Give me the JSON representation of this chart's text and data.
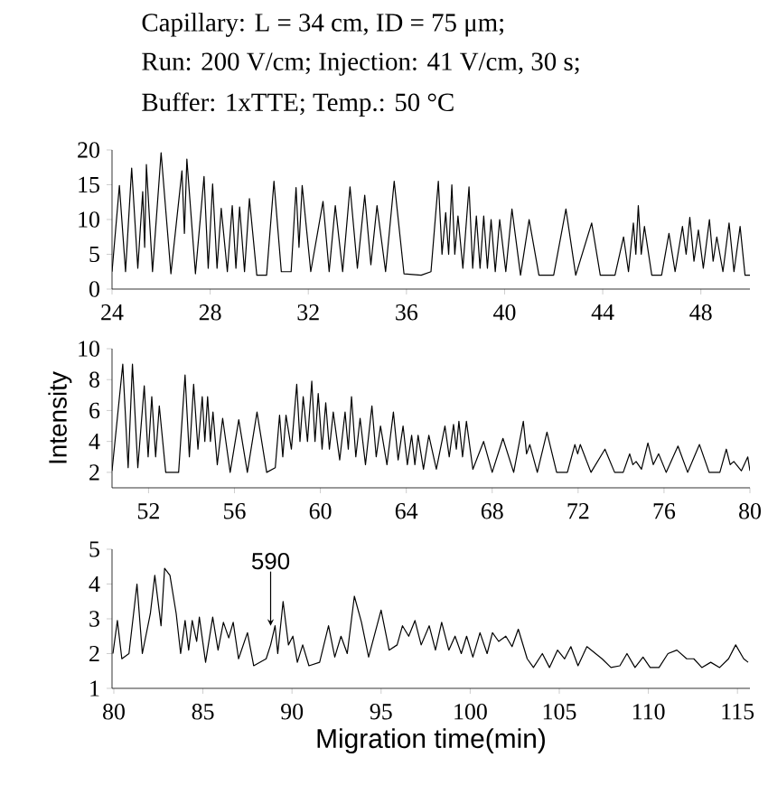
{
  "chart_data": [
    {
      "type": "line",
      "color": "#000000",
      "annotations": [
        "Capillary: L = 34 cm, ID = 75 μm;",
        "Run: 200 V/cm; Injection: 41 V/cm, 30 s;",
        "Buffer: 1xTTE; Temp.: 50 °C"
      ],
      "xlim": [
        24,
        50
      ],
      "xticks": [
        24,
        28,
        32,
        36,
        40,
        44,
        48
      ],
      "ylim": [
        0,
        20
      ],
      "yticks": [
        0,
        5,
        10,
        15,
        20
      ],
      "x": [
        24.0,
        24.3,
        24.55,
        24.8,
        25.05,
        25.25,
        25.33,
        25.4,
        25.65,
        26.0,
        26.4,
        26.85,
        26.95,
        27.05,
        27.4,
        27.75,
        27.92,
        28.1,
        28.28,
        28.45,
        28.7,
        28.9,
        29.05,
        29.2,
        29.4,
        29.6,
        29.9,
        30.3,
        30.6,
        30.9,
        31.3,
        31.5,
        31.62,
        31.75,
        32.1,
        32.6,
        32.85,
        33.1,
        33.4,
        33.7,
        34.0,
        34.3,
        34.55,
        34.8,
        35.15,
        35.5,
        35.9,
        36.6,
        37.0,
        37.3,
        37.45,
        37.6,
        37.72,
        37.85,
        37.97,
        38.1,
        38.3,
        38.55,
        38.7,
        38.85,
        39.0,
        39.15,
        39.3,
        39.45,
        39.62,
        39.8,
        40.05,
        40.3,
        40.65,
        41.0,
        41.4,
        42.0,
        42.5,
        42.9,
        43.55,
        43.9,
        44.5,
        44.85,
        45.05,
        45.25,
        45.35,
        45.45,
        45.57,
        45.7,
        46.0,
        46.4,
        46.7,
        46.95,
        47.25,
        47.4,
        47.55,
        47.72,
        47.9,
        48.1,
        48.35,
        48.5,
        48.65,
        48.9,
        49.15,
        49.35,
        49.6,
        49.8,
        50.0
      ],
      "values": [
        2.5,
        14.9,
        2.5,
        17.4,
        3,
        14,
        6,
        17.9,
        2.5,
        19.6,
        2.2,
        17,
        8,
        18.7,
        2.2,
        16.2,
        3,
        15.1,
        3,
        11.6,
        2.5,
        12,
        3,
        11.8,
        2.5,
        13,
        2,
        2,
        15.5,
        2.5,
        2.5,
        14.6,
        6,
        14.9,
        2.5,
        12.6,
        2.5,
        12,
        2.5,
        14.7,
        3,
        13.5,
        3.5,
        12,
        2.5,
        15.5,
        2.2,
        2,
        2.5,
        15.5,
        5,
        11,
        5,
        15,
        5,
        10.5,
        3,
        14.7,
        3,
        10.5,
        3,
        10.5,
        3,
        10,
        2.5,
        10,
        2.5,
        11.5,
        2,
        10,
        2,
        2,
        11.5,
        2,
        9.5,
        2,
        2,
        7.5,
        2.5,
        9.5,
        5,
        12,
        5,
        9,
        2,
        2,
        8,
        2.5,
        9,
        5,
        10.3,
        4,
        8.5,
        3,
        10,
        4,
        7.5,
        2.5,
        9.5,
        2.5,
        9,
        2,
        2
      ]
    },
    {
      "type": "line",
      "color": "#000000",
      "ylabel": "Intensity",
      "xlim": [
        50.3,
        80
      ],
      "xticks": [
        52,
        56,
        60,
        64,
        68,
        72,
        76,
        80
      ],
      "ylim": [
        1,
        10
      ],
      "yticks": [
        2,
        4,
        6,
        8,
        10
      ],
      "x": [
        50.3,
        50.8,
        51.05,
        51.25,
        51.5,
        51.8,
        51.98,
        52.15,
        52.33,
        52.5,
        52.8,
        53.4,
        53.7,
        53.9,
        54.1,
        54.3,
        54.5,
        54.62,
        54.75,
        54.88,
        55.0,
        55.2,
        55.45,
        55.8,
        56.2,
        56.6,
        57.05,
        57.5,
        57.9,
        58.1,
        58.25,
        58.4,
        58.65,
        58.9,
        59.05,
        59.2,
        59.4,
        59.6,
        59.75,
        59.9,
        60.08,
        60.25,
        60.42,
        60.6,
        60.9,
        61.15,
        61.3,
        61.45,
        61.65,
        61.85,
        62.1,
        62.4,
        62.6,
        62.8,
        63.1,
        63.4,
        63.62,
        63.85,
        64.05,
        64.25,
        64.4,
        64.55,
        64.8,
        65.05,
        65.4,
        65.8,
        66.0,
        66.2,
        66.33,
        66.45,
        66.62,
        66.8,
        67.1,
        67.6,
        68.0,
        68.5,
        69.0,
        69.45,
        69.6,
        69.75,
        70.1,
        70.55,
        71.0,
        71.5,
        71.85,
        71.98,
        72.1,
        72.6,
        73.25,
        73.7,
        74.1,
        74.4,
        74.55,
        74.7,
        74.95,
        75.25,
        75.5,
        75.75,
        76.1,
        76.65,
        77.1,
        77.65,
        78.1,
        78.6,
        78.9,
        79.08,
        79.25,
        79.6,
        79.9,
        80.0
      ],
      "values": [
        2.1,
        9.0,
        2.3,
        9.0,
        2.3,
        7.6,
        3,
        6.9,
        3,
        6.3,
        2,
        2,
        8.3,
        3,
        7.7,
        3.5,
        6.9,
        4,
        6.9,
        4,
        5.9,
        2.5,
        5.5,
        2,
        5.4,
        2,
        5.9,
        2,
        2.3,
        5.7,
        3,
        5.7,
        3.5,
        7.7,
        4,
        6.9,
        4,
        7.9,
        4,
        7.1,
        3.5,
        6.5,
        3.5,
        5.9,
        2.8,
        5.9,
        3.5,
        6.9,
        3,
        5.5,
        2.5,
        6.3,
        3,
        5.0,
        2.5,
        5.9,
        2.8,
        5.0,
        2.5,
        4.4,
        2.5,
        4.4,
        2.2,
        4.4,
        2.2,
        5.0,
        3,
        5.1,
        3.5,
        5.3,
        3,
        5.3,
        2.2,
        4.0,
        2,
        4.2,
        2,
        5.3,
        3.2,
        3.8,
        2,
        4.6,
        2,
        2,
        3.8,
        3.2,
        3.8,
        2,
        3.5,
        2,
        2,
        3.2,
        2.5,
        2.7,
        2.2,
        3.9,
        2.5,
        3.2,
        2,
        3.7,
        2,
        3.8,
        2,
        2,
        3.5,
        2.5,
        2.7,
        2.1,
        3.0,
        2.1
      ]
    },
    {
      "type": "line",
      "color": "#000000",
      "xlabel": "Migration time(min)",
      "annotations": [
        {
          "text": "590",
          "x": 88.8,
          "y": 2.8
        }
      ],
      "xlim": [
        79.9,
        115.7
      ],
      "xticks": [
        80,
        85,
        90,
        95,
        100,
        105,
        110,
        115
      ],
      "ylim": [
        1,
        5
      ],
      "yticks": [
        1,
        2,
        3,
        4,
        5
      ],
      "x": [
        79.95,
        80.2,
        80.45,
        80.85,
        81.3,
        81.6,
        82.05,
        82.3,
        82.65,
        82.85,
        83.15,
        83.5,
        83.75,
        84.0,
        84.2,
        84.4,
        84.65,
        84.8,
        85.15,
        85.55,
        85.85,
        86.15,
        86.45,
        86.7,
        87.0,
        87.5,
        87.85,
        88.55,
        88.8,
        89.05,
        89.2,
        89.5,
        89.8,
        90.05,
        90.3,
        90.6,
        90.95,
        91.55,
        92.05,
        92.4,
        92.75,
        93.1,
        93.5,
        93.9,
        94.3,
        95.0,
        95.45,
        95.9,
        96.2,
        96.55,
        96.9,
        97.25,
        97.7,
        98.05,
        98.4,
        98.8,
        99.15,
        99.5,
        99.8,
        100.15,
        100.55,
        100.95,
        101.25,
        101.6,
        102.0,
        102.35,
        102.7,
        103.2,
        103.55,
        104.05,
        104.45,
        104.9,
        105.3,
        105.65,
        106.05,
        106.55,
        107.4,
        107.9,
        108.4,
        108.8,
        109.25,
        109.7,
        110.1,
        110.6,
        111.1,
        111.6,
        112.15,
        112.55,
        113.0,
        113.5,
        114.0,
        114.5,
        114.9,
        115.35,
        115.6
      ],
      "values": [
        2.0,
        2.95,
        1.85,
        2.0,
        4.0,
        2.0,
        3.15,
        4.25,
        2.8,
        4.45,
        4.25,
        3.15,
        2.0,
        2.95,
        2.1,
        2.95,
        2.35,
        3.05,
        1.75,
        3.05,
        2.1,
        2.9,
        2.45,
        2.9,
        1.85,
        2.6,
        1.65,
        1.85,
        2.25,
        2.8,
        2.0,
        3.5,
        2.25,
        2.5,
        1.75,
        2.25,
        1.65,
        1.75,
        2.8,
        1.9,
        2.5,
        2.0,
        3.65,
        2.9,
        1.9,
        3.25,
        2.1,
        2.25,
        2.8,
        2.5,
        2.95,
        2.25,
        2.8,
        2.1,
        2.9,
        2.1,
        2.5,
        2.0,
        2.5,
        1.9,
        2.6,
        2.0,
        2.6,
        2.35,
        2.5,
        2.2,
        2.7,
        1.85,
        1.6,
        2.0,
        1.6,
        2.1,
        1.85,
        2.2,
        1.65,
        2.2,
        1.85,
        1.6,
        1.65,
        2.0,
        1.6,
        1.9,
        1.6,
        1.6,
        2.0,
        2.1,
        1.85,
        1.85,
        1.6,
        1.75,
        1.6,
        1.85,
        2.25,
        1.85,
        1.75
      ]
    }
  ]
}
